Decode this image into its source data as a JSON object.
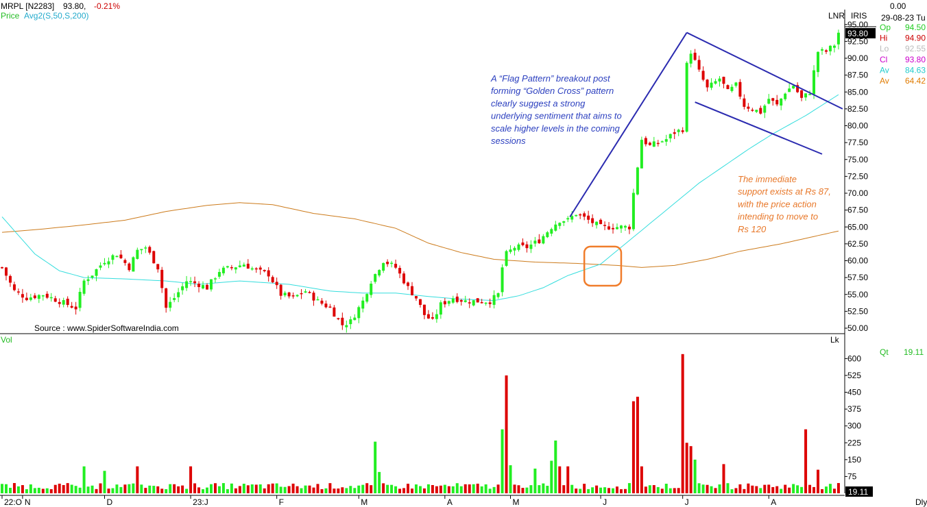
{
  "header": {
    "symbol": "MRPL [N2283]",
    "last": "93.80,",
    "change": "-0.21%",
    "price_label": "Price",
    "avg_label": "Avg2(S,50,S,200)",
    "lnr": "LNR",
    "iris": "IRIS",
    "zero": "0.00",
    "date": "29-08-23 Tu"
  },
  "ohlc_panel": [
    {
      "k": "Op",
      "v": "94.50",
      "kc": "#22cc22",
      "vc": "#22cc22"
    },
    {
      "k": "Hi",
      "v": "94.90",
      "kc": "#cc0000",
      "vc": "#cc0000"
    },
    {
      "k": "Lo",
      "v": "92.55",
      "kc": "#bbbbbb",
      "vc": "#bbbbbb"
    },
    {
      "k": "Cl",
      "v": "93.80",
      "kc": "#cc00cc",
      "vc": "#cc00cc"
    },
    {
      "k": "Av",
      "v": "84.63",
      "kc": "#22cccc",
      "vc": "#22cccc"
    },
    {
      "k": "Av",
      "v": "64.42",
      "kc": "#e07b00",
      "vc": "#e07b00"
    }
  ],
  "price_tag": "93.80",
  "source": "Source : www.SpiderSoftwareIndia.com",
  "vol_label": "Vol",
  "lk": "Lk",
  "qt_label": "Qt",
  "qt_value": "19.11",
  "vol_tag": "19.11",
  "dly": "Dly",
  "annotation_blue": [
    "A “Flag Pattern” breakout post",
    "forming “Golden Cross” pattern",
    "clearly suggest a strong",
    "underlying sentiment that aims to",
    "scale higher levels in the coming",
    "sessions"
  ],
  "annotation_orange": [
    "The immediate",
    "support exists at Rs 87,",
    "with the price action",
    "intending to move to",
    "Rs 120"
  ],
  "colors": {
    "up": "#22ee22",
    "down": "#dd0000",
    "ma50": "#33dddd",
    "ma200": "#cc7a1a",
    "trend": "#2b2bb0",
    "box": "#f07c2a",
    "blue_text": "#2b3fbf",
    "orange_text": "#e8782a"
  },
  "chart_data": {
    "type": "candlestick",
    "price_axis": {
      "ticks": [
        "95.00",
        "92.50",
        "90.00",
        "87.50",
        "85.00",
        "82.50",
        "80.00",
        "77.50",
        "75.00",
        "72.50",
        "70.00",
        "67.50",
        "65.00",
        "62.50",
        "60.00",
        "57.50",
        "55.00",
        "52.50",
        "50.00"
      ],
      "range": [
        49.3,
        96.3
      ]
    },
    "volume_axis": {
      "ticks": [
        "600",
        "525",
        "450",
        "375",
        "300",
        "225",
        "150",
        "75"
      ],
      "range": [
        0,
        640
      ]
    },
    "x_labels": [
      {
        "label": "22:O",
        "idx": 0
      },
      {
        "label": "N",
        "idx": 5
      },
      {
        "label": "D",
        "idx": 25
      },
      {
        "label": "23:J",
        "idx": 46
      },
      {
        "label": "F",
        "idx": 67
      },
      {
        "label": "M",
        "idx": 87
      },
      {
        "label": "A",
        "idx": 108
      },
      {
        "label": "M",
        "idx": 124
      },
      {
        "label": "J",
        "idx": 146
      },
      {
        "label": "J",
        "idx": 166
      },
      {
        "label": "A",
        "idx": 187
      }
    ],
    "close_anchors": [
      [
        0,
        59
      ],
      [
        3,
        55.5
      ],
      [
        6,
        54.5
      ],
      [
        10,
        55
      ],
      [
        14,
        54
      ],
      [
        18,
        53
      ],
      [
        20,
        57
      ],
      [
        22,
        58
      ],
      [
        25,
        60
      ],
      [
        28,
        61
      ],
      [
        31,
        59
      ],
      [
        33,
        61.5
      ],
      [
        35,
        62
      ],
      [
        38,
        59
      ],
      [
        40,
        53
      ],
      [
        42,
        54.5
      ],
      [
        45,
        57
      ],
      [
        48,
        56.5
      ],
      [
        50,
        56
      ],
      [
        53,
        58.5
      ],
      [
        56,
        59
      ],
      [
        59,
        59.5
      ],
      [
        62,
        58.5
      ],
      [
        65,
        58
      ],
      [
        68,
        55
      ],
      [
        71,
        54.5
      ],
      [
        74,
        55.5
      ],
      [
        77,
        54
      ],
      [
        80,
        53
      ],
      [
        83,
        50.5
      ],
      [
        85,
        51
      ],
      [
        88,
        54
      ],
      [
        90,
        57
      ],
      [
        93,
        60
      ],
      [
        96,
        59
      ],
      [
        99,
        56
      ],
      [
        101,
        54.5
      ],
      [
        103,
        52
      ],
      [
        105,
        51
      ],
      [
        107,
        53.5
      ],
      [
        110,
        54.5
      ],
      [
        113,
        54
      ],
      [
        116,
        54
      ],
      [
        119,
        54
      ],
      [
        121,
        55
      ],
      [
        122,
        59
      ],
      [
        123,
        61
      ],
      [
        125,
        62
      ],
      [
        128,
        62
      ],
      [
        131,
        63
      ],
      [
        134,
        65
      ],
      [
        136,
        66
      ],
      [
        138,
        66
      ],
      [
        140,
        67
      ],
      [
        143,
        66
      ],
      [
        146,
        65
      ],
      [
        149,
        65
      ],
      [
        151,
        65
      ],
      [
        153,
        65
      ],
      [
        154,
        70
      ],
      [
        156,
        78
      ],
      [
        158,
        77
      ],
      [
        160,
        77.5
      ],
      [
        162,
        78
      ],
      [
        164,
        79
      ],
      [
        166,
        79.5
      ],
      [
        167,
        89
      ],
      [
        168,
        91
      ],
      [
        170,
        88
      ],
      [
        172,
        85.5
      ],
      [
        175,
        87
      ],
      [
        177,
        85
      ],
      [
        179,
        86
      ],
      [
        181,
        83
      ],
      [
        183,
        82.5
      ],
      [
        185,
        82
      ],
      [
        187,
        84
      ],
      [
        189,
        83
      ],
      [
        191,
        85
      ],
      [
        193,
        86
      ],
      [
        195,
        84
      ],
      [
        197,
        85
      ],
      [
        198,
        88
      ],
      [
        199,
        91
      ],
      [
        201,
        91
      ],
      [
        203,
        92
      ],
      [
        204,
        93.8
      ]
    ],
    "ma50_anchors": [
      [
        0,
        66.5
      ],
      [
        8,
        61
      ],
      [
        14,
        58.5
      ],
      [
        20,
        57.5
      ],
      [
        30,
        57.3
      ],
      [
        40,
        57
      ],
      [
        48,
        56.5
      ],
      [
        58,
        57
      ],
      [
        70,
        56.5
      ],
      [
        80,
        55.5
      ],
      [
        88,
        55.2
      ],
      [
        96,
        55.2
      ],
      [
        104,
        54.7
      ],
      [
        112,
        54.3
      ],
      [
        120,
        54.1
      ],
      [
        126,
        54.8
      ],
      [
        132,
        56
      ],
      [
        138,
        57.8
      ],
      [
        146,
        59.5
      ],
      [
        152,
        62.5
      ],
      [
        158,
        65.5
      ],
      [
        164,
        68.5
      ],
      [
        170,
        71.5
      ],
      [
        176,
        74
      ],
      [
        182,
        76.5
      ],
      [
        188,
        78.8
      ],
      [
        196,
        81.5
      ],
      [
        204,
        84.6
      ]
    ],
    "ma200_anchors": [
      [
        0,
        64.2
      ],
      [
        10,
        64.7
      ],
      [
        20,
        65.3
      ],
      [
        30,
        66
      ],
      [
        40,
        67.3
      ],
      [
        50,
        68.2
      ],
      [
        58,
        68.6
      ],
      [
        66,
        68.3
      ],
      [
        76,
        67
      ],
      [
        86,
        66.2
      ],
      [
        96,
        64.8
      ],
      [
        104,
        62.6
      ],
      [
        112,
        61.2
      ],
      [
        120,
        60.2
      ],
      [
        130,
        59.8
      ],
      [
        140,
        59.6
      ],
      [
        150,
        59.3
      ],
      [
        156,
        59
      ],
      [
        164,
        59.3
      ],
      [
        172,
        60.2
      ],
      [
        180,
        61.4
      ],
      [
        190,
        62.5
      ],
      [
        204,
        64.4
      ]
    ],
    "volume_spikes": [
      [
        20,
        120
      ],
      [
        25,
        100
      ],
      [
        33,
        120
      ],
      [
        46,
        120
      ],
      [
        91,
        230
      ],
      [
        92,
        95
      ],
      [
        122,
        285
      ],
      [
        123,
        525
      ],
      [
        124,
        125
      ],
      [
        130,
        110
      ],
      [
        134,
        145
      ],
      [
        135,
        235
      ],
      [
        136,
        120
      ],
      [
        138,
        120
      ],
      [
        154,
        410
      ],
      [
        155,
        430
      ],
      [
        156,
        120
      ],
      [
        166,
        620
      ],
      [
        167,
        225
      ],
      [
        168,
        210
      ],
      [
        169,
        150
      ],
      [
        176,
        130
      ],
      [
        196,
        285
      ],
      [
        199,
        105
      ]
    ],
    "annotations": {
      "flag_pole": [
        [
          138.5,
          66.5
        ],
        [
          167,
          93.8
        ]
      ],
      "channel_upper": [
        [
          167,
          93.8
        ],
        [
          205,
          82.5
        ]
      ],
      "channel_lower": [
        [
          169,
          83.5
        ],
        [
          200,
          75.8
        ]
      ],
      "golden_cross_box": {
        "x": [
          142,
          151
        ],
        "y": [
          56.3,
          62.1
        ]
      }
    }
  }
}
